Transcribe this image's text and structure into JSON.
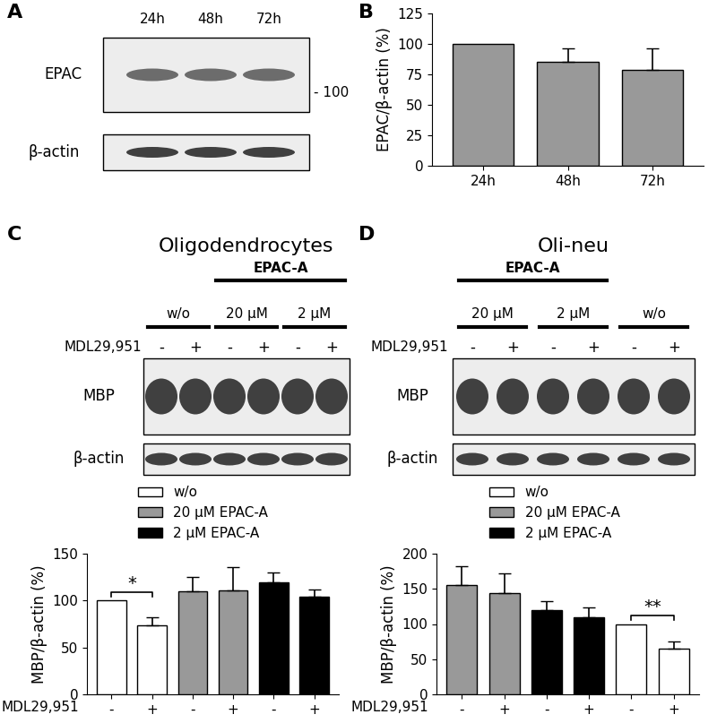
{
  "panel_labels": [
    "A",
    "B",
    "C",
    "D"
  ],
  "blots": [
    {
      "lanes": [
        "24h",
        "48h",
        "72h"
      ],
      "rows": [
        "EPAC",
        "β-actin"
      ],
      "marker": "- 100"
    },
    {
      "title": "Oligodendrocytes",
      "header": [
        {
          "label": "EPAC-A",
          "from": 2,
          "to": 5
        }
      ],
      "groups": [
        {
          "label": "w/o",
          "from": 0,
          "to": 1
        },
        {
          "label": "20 µM",
          "from": 2,
          "to": 3
        },
        {
          "label": "2 µM",
          "from": 4,
          "to": 5
        }
      ],
      "treatment": {
        "label": "MDL29,951",
        "signs": [
          "-",
          "+",
          "-",
          "+",
          "-",
          "+"
        ]
      },
      "rows": [
        "MBP",
        "β-actin"
      ]
    },
    {
      "title": "Oli-neu",
      "header": [
        {
          "label": "EPAC-A",
          "from": 0,
          "to": 3
        }
      ],
      "groups": [
        {
          "label": "20 µM",
          "from": 0,
          "to": 1
        },
        {
          "label": "2 µM",
          "from": 2,
          "to": 3
        },
        {
          "label": "w/o",
          "from": 4,
          "to": 5
        }
      ],
      "treatment": {
        "label": "MDL29,951",
        "signs": [
          "-",
          "+",
          "-",
          "+",
          "-",
          "+"
        ]
      },
      "rows": [
        "MBP",
        "β-actin"
      ]
    }
  ],
  "chart_data": [
    {
      "type": "bar",
      "categories": [
        "24h",
        "48h",
        "72h"
      ],
      "values": [
        100,
        85,
        79
      ],
      "errors": [
        null,
        11,
        17
      ],
      "color": "#999999",
      "ylabel": "EPAC/β-actin (%)",
      "ylim": [
        0,
        125
      ],
      "yticks": [
        0,
        25,
        50,
        75,
        100,
        125
      ]
    },
    {
      "type": "bar",
      "categories": [
        "-",
        "+",
        "-",
        "+",
        "-",
        "+"
      ],
      "xlabel": "MDL29,951",
      "series": [
        {
          "name": "w/o",
          "color": "#ffffff",
          "values": [
            100,
            74,
            null,
            null,
            null,
            null
          ],
          "errors": [
            null,
            8,
            null,
            null,
            null,
            null
          ]
        },
        {
          "name": "20 µM EPAC-A",
          "color": "#999999",
          "values": [
            null,
            null,
            110,
            111,
            null,
            null
          ],
          "errors": [
            null,
            null,
            15,
            25,
            null,
            null
          ]
        },
        {
          "name": "2 µM EPAC-A",
          "color": "#000000",
          "values": [
            null,
            null,
            null,
            null,
            119,
            104
          ],
          "errors": [
            null,
            null,
            null,
            null,
            11,
            8
          ]
        }
      ],
      "ylabel": "MBP/β-actin (%)",
      "ylim": [
        0,
        150
      ],
      "yticks": [
        0,
        50,
        100,
        150
      ],
      "legend": "upper left",
      "annotations": [
        {
          "text": "*",
          "from": 0,
          "to": 1
        }
      ]
    },
    {
      "type": "bar",
      "categories": [
        "-",
        "+",
        "-",
        "+",
        "-",
        "+"
      ],
      "xlabel": "MDL29,951",
      "series": [
        {
          "name": "w/o",
          "color": "#ffffff",
          "values": [
            null,
            null,
            null,
            null,
            100,
            65
          ],
          "errors": [
            null,
            null,
            null,
            null,
            null,
            10
          ]
        },
        {
          "name": "20 µM EPAC-A",
          "color": "#999999",
          "values": [
            155,
            144,
            null,
            null,
            null,
            null
          ],
          "errors": [
            27,
            28,
            null,
            null,
            null,
            null
          ]
        },
        {
          "name": "2 µM EPAC-A",
          "color": "#000000",
          "values": [
            null,
            null,
            120,
            110,
            null,
            null
          ],
          "errors": [
            null,
            null,
            13,
            13,
            null,
            null
          ]
        }
      ],
      "ylabel": "MBP/β-actin (%)",
      "ylim": [
        0,
        200
      ],
      "yticks": [
        0,
        50,
        100,
        150,
        200
      ],
      "legend": "upper left",
      "annotations": [
        {
          "text": "**",
          "from": 4,
          "to": 5
        }
      ]
    }
  ]
}
